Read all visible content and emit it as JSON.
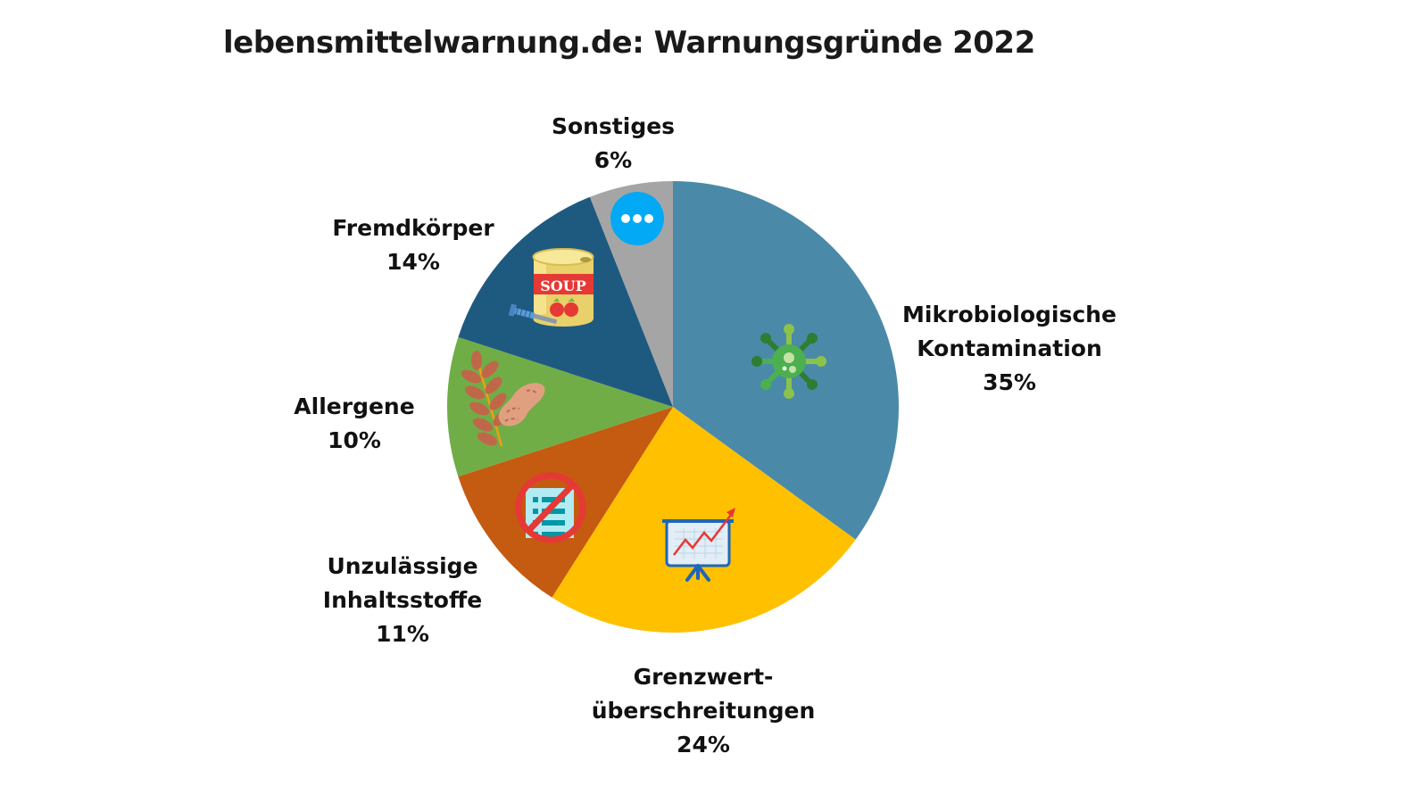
{
  "title": "lebensmittelwarnung.de: Warnungsgründe 2022",
  "chart_data": {
    "type": "pie",
    "title": "lebensmittelwarnung.de: Warnungsgründe 2022",
    "start_angle": "12 o'clock, clockwise",
    "categories": [
      "Mikrobiologische Kontamination",
      "Grenzwertüberschreitungen",
      "Unzulässige Inhaltsstoffe",
      "Allergene",
      "Fremdkörper",
      "Sonstiges"
    ],
    "values": [
      35,
      24,
      11,
      10,
      14,
      6
    ],
    "unit": "%",
    "colors": [
      "#4a8aa8",
      "#ffc000",
      "#c55a11",
      "#70ad47",
      "#1e5a80",
      "#a5a5a5"
    ],
    "icons": [
      "virus-icon",
      "chart-presentation-icon",
      "forbidden-list-icon",
      "wheat-peanut-icon",
      "soup-can-screw-icon",
      "more-dots-icon"
    ],
    "legend": "none (direct labels)"
  },
  "labels": [
    {
      "line1": "Mikrobiologische",
      "line2": "Kontamination",
      "pct": "35%"
    },
    {
      "line1": "Grenzwert-",
      "line2": "überschreitungen",
      "pct": "24%"
    },
    {
      "line1": "Unzulässige",
      "line2": "Inhaltsstoffe",
      "pct": "11%"
    },
    {
      "line1": "Allergene",
      "pct": "10%"
    },
    {
      "line1": "Fremdkörper",
      "pct": "14%"
    },
    {
      "line1": "Sonstiges",
      "pct": "6%"
    }
  ],
  "icon_text": {
    "soup": "SOUP"
  }
}
